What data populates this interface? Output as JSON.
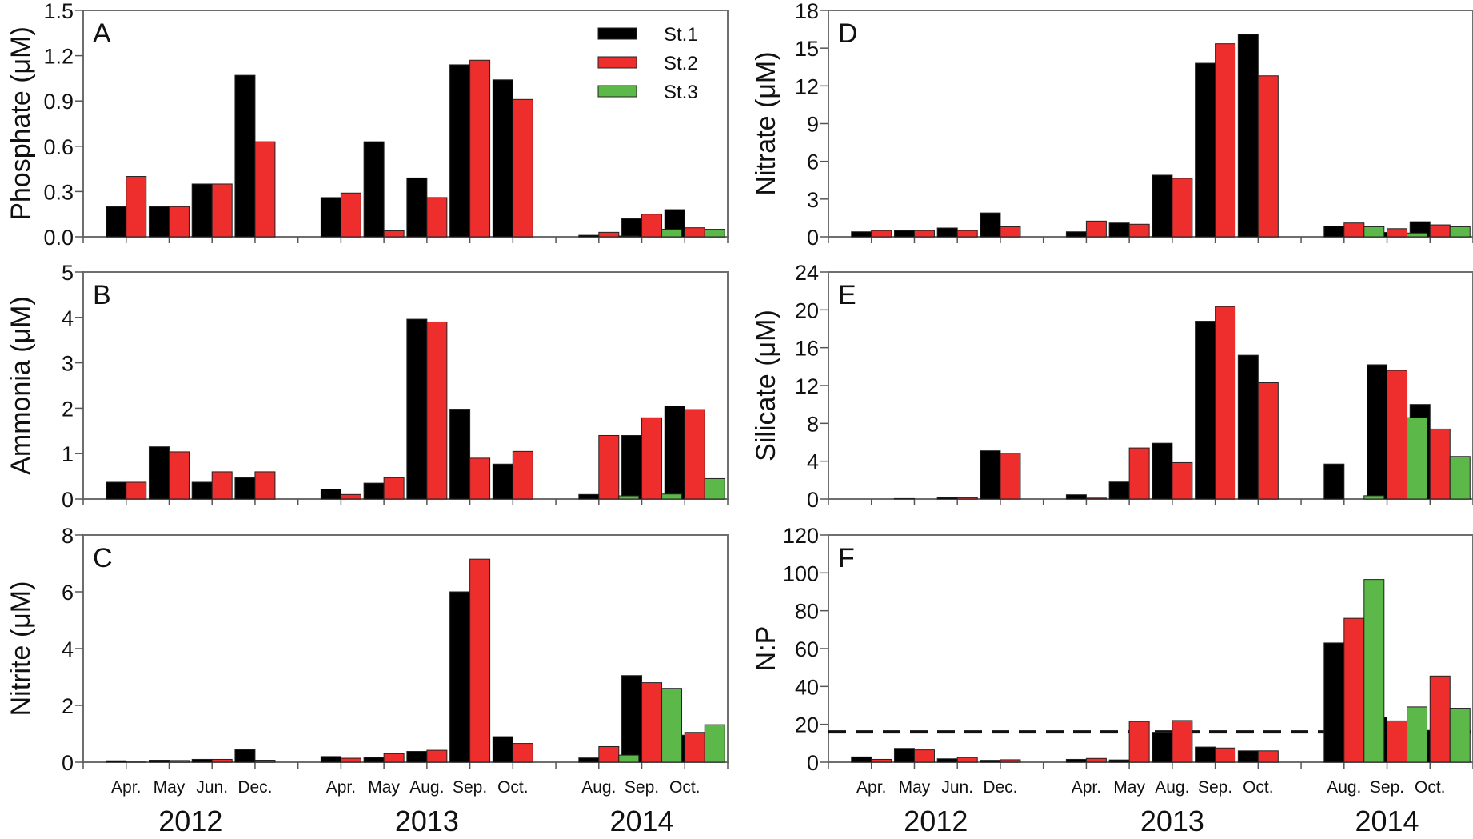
{
  "chart_data": {
    "type": "bar",
    "colors": {
      "St.1": "#000000",
      "St.2": "#ee2d2d",
      "St.3": "#5cb848"
    },
    "legend": {
      "entries": [
        "St.1",
        "St.2",
        "St.3"
      ],
      "placement": "top-right of panel A"
    },
    "years": [
      {
        "label": "2012",
        "months": [
          "Apr.",
          "May",
          "Jun.",
          "Dec."
        ]
      },
      {
        "label": "2013",
        "months": [
          "Apr.",
          "May",
          "Aug.",
          "Sep.",
          "Oct."
        ]
      },
      {
        "label": "2014",
        "months": [
          "Aug.",
          "Sep.",
          "Oct."
        ]
      }
    ],
    "categories": [
      "2012 Apr.",
      "2012 May",
      "2012 Jun.",
      "2012 Dec.",
      "2013 Apr.",
      "2013 May",
      "2013 Aug.",
      "2013 Sep.",
      "2013 Oct.",
      "2014 Aug.",
      "2014 Sep.",
      "2014 Oct."
    ],
    "panels": [
      {
        "letter": "A",
        "ylabel": "Phosphate (μM)",
        "ylim": [
          0,
          1.5
        ],
        "yticks": [
          "0.0",
          "0.3",
          "0.6",
          "0.9",
          "1.2",
          "1.5"
        ],
        "ytick_values": [
          0,
          0.3,
          0.6,
          0.9,
          1.2,
          1.5
        ],
        "series": [
          {
            "name": "St.1",
            "values": [
              0.2,
              0.2,
              0.35,
              1.07,
              0.26,
              0.63,
              0.39,
              1.14,
              1.04,
              0.01,
              0.12,
              0.18
            ]
          },
          {
            "name": "St.2",
            "values": [
              0.4,
              0.2,
              0.35,
              0.63,
              0.29,
              0.04,
              0.26,
              1.17,
              0.91,
              0.03,
              0.15,
              0.06
            ]
          },
          {
            "name": "St.3",
            "values": [
              null,
              null,
              null,
              null,
              null,
              null,
              null,
              null,
              null,
              0.005,
              0.05,
              0.05
            ]
          }
        ]
      },
      {
        "letter": "B",
        "ylabel": "Ammonia (μM)",
        "ylim": [
          0,
          5
        ],
        "yticks": [
          "0",
          "1",
          "2",
          "3",
          "4",
          "5"
        ],
        "ytick_values": [
          0,
          1,
          2,
          3,
          4,
          5
        ],
        "series": [
          {
            "name": "St.1",
            "values": [
              0.37,
              1.15,
              0.37,
              0.47,
              0.22,
              0.35,
              3.96,
              1.98,
              0.77,
              0.1,
              1.4,
              2.05
            ]
          },
          {
            "name": "St.2",
            "values": [
              0.37,
              1.04,
              0.6,
              0.6,
              0.1,
              0.47,
              3.9,
              0.9,
              1.05,
              1.4,
              1.79,
              1.97
            ]
          },
          {
            "name": "St.3",
            "values": [
              null,
              null,
              null,
              null,
              null,
              null,
              null,
              null,
              null,
              0.07,
              0.11,
              0.45
            ]
          }
        ]
      },
      {
        "letter": "C",
        "ylabel": "Nitrite (μM)",
        "ylim": [
          0,
          8
        ],
        "yticks": [
          "0",
          "2",
          "4",
          "6",
          "8"
        ],
        "ytick_values": [
          0,
          2,
          4,
          6,
          8
        ],
        "series": [
          {
            "name": "St.1",
            "values": [
              0.05,
              0.07,
              0.1,
              0.44,
              0.2,
              0.17,
              0.38,
              6.0,
              0.9,
              0.15,
              3.05,
              0.95
            ]
          },
          {
            "name": "St.2",
            "values": [
              0.04,
              0.06,
              0.1,
              0.07,
              0.14,
              0.3,
              0.42,
              7.15,
              0.66,
              0.55,
              2.8,
              1.05
            ]
          },
          {
            "name": "St.3",
            "values": [
              null,
              null,
              null,
              null,
              null,
              null,
              null,
              null,
              null,
              0.25,
              2.6,
              1.32
            ]
          }
        ]
      },
      {
        "letter": "D",
        "ylabel": "Nitrate (μM)",
        "ylim": [
          0,
          18
        ],
        "yticks": [
          "0",
          "3",
          "6",
          "9",
          "12",
          "15",
          "18"
        ],
        "ytick_values": [
          0,
          3,
          6,
          9,
          12,
          15,
          18
        ],
        "series": [
          {
            "name": "St.1",
            "values": [
              0.4,
              0.5,
              0.7,
              1.9,
              0.4,
              1.1,
              4.9,
              13.8,
              16.1,
              0.85,
              0.35,
              1.2
            ]
          },
          {
            "name": "St.2",
            "values": [
              0.5,
              0.5,
              0.5,
              0.8,
              1.25,
              1.0,
              4.65,
              15.35,
              12.8,
              1.1,
              0.65,
              0.95
            ]
          },
          {
            "name": "St.3",
            "values": [
              null,
              null,
              null,
              null,
              null,
              null,
              null,
              null,
              null,
              0.8,
              0.3,
              0.8
            ]
          }
        ]
      },
      {
        "letter": "E",
        "ylabel": "Silicate (μM)",
        "ylim": [
          0,
          24
        ],
        "yticks": [
          "0",
          "4",
          "8",
          "12",
          "16",
          "20",
          "24"
        ],
        "ytick_values": [
          0,
          4,
          8,
          12,
          16,
          20,
          24
        ],
        "series": [
          {
            "name": "St.1",
            "values": [
              0.0,
              0.05,
              0.15,
              5.1,
              0.45,
              1.8,
              5.9,
              18.8,
              15.2,
              3.7,
              14.2,
              10.0
            ]
          },
          {
            "name": "St.2",
            "values": [
              0.0,
              0.0,
              0.15,
              4.85,
              0.1,
              5.4,
              3.85,
              20.35,
              12.3,
              0.0,
              13.6,
              7.4
            ]
          },
          {
            "name": "St.3",
            "values": [
              null,
              null,
              null,
              null,
              null,
              null,
              null,
              null,
              null,
              0.35,
              8.6,
              4.5
            ]
          }
        ]
      },
      {
        "letter": "F",
        "ylabel": "N:P",
        "ylim": [
          0,
          120
        ],
        "yticks": [
          "0",
          "20",
          "40",
          "60",
          "80",
          "100",
          "120"
        ],
        "ytick_values": [
          0,
          20,
          40,
          60,
          80,
          100,
          120
        ],
        "reference_line": {
          "value": 16,
          "style": "dashed",
          "label": ""
        },
        "series": [
          {
            "name": "St.1",
            "values": [
              2.8,
              7.3,
              1.8,
              1.0,
              1.5,
              1.2,
              15.8,
              8.0,
              6.0,
              63.0,
              23.7,
              16.8
            ]
          },
          {
            "name": "St.2",
            "values": [
              1.5,
              6.5,
              2.5,
              1.3,
              2.0,
              21.5,
              22.0,
              7.5,
              6.0,
              76.0,
              21.8,
              45.5
            ]
          },
          {
            "name": "St.3",
            "values": [
              null,
              null,
              null,
              null,
              null,
              null,
              null,
              null,
              null,
              96.5,
              29.2,
              28.5
            ]
          }
        ]
      }
    ]
  }
}
